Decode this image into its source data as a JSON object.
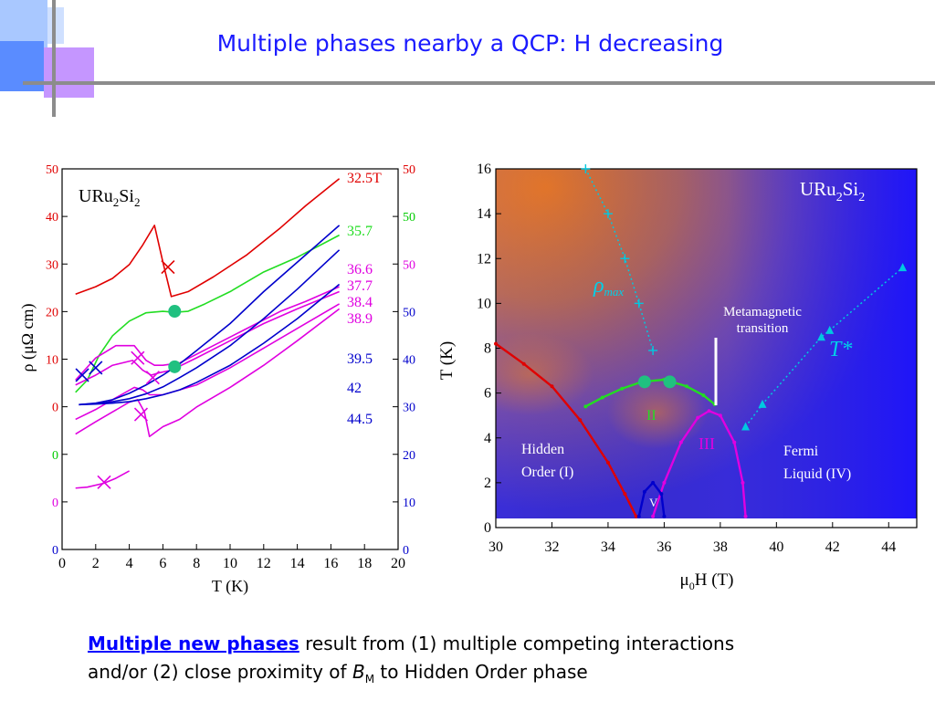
{
  "slide": {
    "title": "Multiple phases nearby a QCP: H decreasing",
    "footer": {
      "highlight": "Multiple new phases",
      "line1_rest": " result from (1) multiple competing interactions",
      "line2_pre": "and/or (2) close proximity of ",
      "b_symbol": "B",
      "b_sub": "M",
      "line2_post": " to Hidden Order phase"
    }
  },
  "chart_data": [
    {
      "type": "line",
      "compound": "URu",
      "compound_sub1": "2",
      "compound_mid": "Si",
      "compound_sub2": "2",
      "xlabel": "T (K)",
      "ylabel": "ρ (μΩ cm)",
      "xlim": [
        0,
        20
      ],
      "xticks": [
        0,
        2,
        4,
        6,
        8,
        10,
        12,
        14,
        16,
        18,
        20
      ],
      "left_ticks": [
        {
          "label": "50",
          "color": "#e00000"
        },
        {
          "label": "40",
          "color": "#e00000"
        },
        {
          "label": "30",
          "color": "#e00000"
        },
        {
          "label": "20",
          "color": "#e00000"
        },
        {
          "label": "10",
          "color": "#e00000"
        },
        {
          "label": "0",
          "color": "#e00000"
        },
        {
          "label": "0",
          "color": "#00cc00"
        },
        {
          "label": "0",
          "color": "#e000e0"
        },
        {
          "label": "0",
          "color": "#0000cc"
        }
      ],
      "right_ticks": [
        {
          "label": "50",
          "color": "#e00000"
        },
        {
          "label": "50",
          "color": "#00cc00"
        },
        {
          "label": "50",
          "color": "#e000e0"
        },
        {
          "label": "50",
          "color": "#0000cc"
        },
        {
          "label": "40",
          "color": "#0000cc"
        },
        {
          "label": "30",
          "color": "#0000cc"
        },
        {
          "label": "20",
          "color": "#0000cc"
        },
        {
          "label": "10",
          "color": "#0000cc"
        },
        {
          "label": "0",
          "color": "#0000cc"
        }
      ],
      "series": [
        {
          "name": "32.5T",
          "color": "#e00000",
          "x": [
            0.8,
            2,
            3,
            4,
            4.8,
            5.5,
            6.0,
            6.5,
            7.5,
            9,
            11,
            13,
            14.5,
            16.5
          ],
          "y": [
            24.5,
            26,
            27.7,
            30.5,
            34.5,
            38.5,
            31,
            24,
            25,
            28,
            32.5,
            38,
            42.5,
            48
          ]
        },
        {
          "name": "35.7",
          "color": "#22dd22",
          "x": [
            0.8,
            1.5,
            2.2,
            3,
            4,
            5,
            6,
            6.7,
            7.5,
            8.5,
            10,
            12,
            14,
            16.5
          ],
          "y": [
            4.5,
            7,
            12,
            16,
            19,
            20.7,
            21,
            20.8,
            21,
            22.5,
            25,
            29,
            32,
            36.5
          ]
        },
        {
          "name": "36.6",
          "color": "#e000e0",
          "x": [
            0.8,
            2,
            3.2,
            4.3,
            5,
            5.5,
            6,
            7,
            9,
            11,
            13,
            14.5,
            16.5
          ],
          "y": [
            7,
            11.5,
            14,
            14,
            11,
            10,
            10,
            10.5,
            14,
            17.5,
            21,
            23,
            26
          ]
        },
        {
          "name": "37.7",
          "color": "#e000e0",
          "x": [
            0.8,
            2,
            3,
            4.2,
            4.8,
            5.3,
            5.8,
            6.5,
            8,
            10,
            12,
            14,
            16.5
          ],
          "y": [
            6,
            8,
            10,
            11,
            9,
            8,
            8.5,
            9,
            11.5,
            15,
            18.5,
            21.5,
            25
          ]
        },
        {
          "name": "38.4",
          "color": "#e000e0",
          "x": [
            0.8,
            2,
            3,
            4.3,
            4.8,
            5.2,
            6,
            7,
            8,
            10,
            12,
            14,
            16.5
          ],
          "y": [
            -1,
            1,
            3,
            5.5,
            5,
            4,
            4,
            5,
            6,
            9.5,
            13.5,
            17.5,
            22.5
          ]
        },
        {
          "name": "38.9",
          "color": "#e000e0",
          "x": [
            0.8,
            2,
            3,
            4,
            4.5,
            4.9,
            5.2,
            6,
            7,
            8,
            10,
            12,
            14,
            16.5
          ],
          "y": [
            -4,
            -1.5,
            0.5,
            2.5,
            3,
            0.5,
            -4.5,
            -2.5,
            -1,
            1.5,
            5.5,
            10,
            15,
            21.5
          ]
        },
        {
          "name": "",
          "color": "#e000e0",
          "x": [
            0.8,
            1.5,
            2.5,
            3.2,
            4
          ],
          "y": [
            -15,
            -14.8,
            -14,
            -13,
            -11.5
          ]
        },
        {
          "name": "39.5",
          "color": "#0000cc",
          "x": [
            1,
            2,
            3,
            4,
            5,
            6,
            7,
            8,
            10,
            12,
            14,
            16.5
          ],
          "y": [
            2,
            2.3,
            3,
            4.3,
            6,
            8,
            10.3,
            13,
            18.5,
            25,
            31,
            38.5
          ]
        },
        {
          "name": "42",
          "color": "#0000cc",
          "x": [
            1,
            2,
            3,
            4,
            5,
            6,
            7,
            8,
            10,
            12,
            14,
            16.5
          ],
          "y": [
            2,
            2.2,
            2.6,
            3.2,
            4.2,
            5.6,
            7.5,
            9.5,
            14,
            19.5,
            25.5,
            33.5
          ]
        },
        {
          "name": "44.5",
          "color": "#0000cc",
          "x": [
            1,
            2,
            3,
            4,
            5,
            6,
            7,
            8,
            10,
            12,
            14,
            16.5
          ],
          "y": [
            2,
            2.1,
            2.3,
            2.6,
            3.2,
            4,
            5,
            6.5,
            10,
            14.5,
            19.5,
            26.5
          ]
        }
      ],
      "markers": [
        {
          "type": "x",
          "x": 6.3,
          "y": 30,
          "color": "#e00000"
        },
        {
          "type": "dot",
          "x": 6.7,
          "y": 21,
          "color": "#20c080"
        },
        {
          "type": "dot",
          "x": 6.7,
          "y": 9.7,
          "color": "#20c080"
        },
        {
          "type": "x",
          "x": 4.5,
          "y": 11.5,
          "color": "#e000e0"
        },
        {
          "type": "x",
          "x": 5.4,
          "y": 7.5,
          "color": "#e000e0"
        },
        {
          "type": "x",
          "x": 4.7,
          "y": 0,
          "color": "#e000e0"
        },
        {
          "type": "x",
          "x": 2.5,
          "y": -13.8,
          "color": "#e000e0"
        },
        {
          "type": "x",
          "x": 1.2,
          "y": 8,
          "color": "#0000cc"
        },
        {
          "type": "x",
          "x": 2.0,
          "y": 9.5,
          "color": "#0000cc"
        }
      ]
    },
    {
      "type": "scatter",
      "compound": "URu",
      "compound_sub1": "2",
      "compound_mid": "Si",
      "compound_sub2": "2",
      "xlabel_mu": "μ",
      "xlabel_sub": "0",
      "xlabel_rest": "H (T)",
      "ylabel": "T (K)",
      "xlim": [
        30,
        45
      ],
      "ylim": [
        0,
        16
      ],
      "xticks": [
        30,
        32,
        34,
        36,
        38,
        40,
        42,
        44
      ],
      "yticks": [
        0,
        2,
        4,
        6,
        8,
        10,
        12,
        14,
        16
      ],
      "labels": {
        "rho_symbol": "ρ",
        "rho_sub": "max",
        "metamagnetic_line1": "Metamagnetic",
        "metamagnetic_line2": "transition",
        "tstar": "T*",
        "phase_ii": "II",
        "phase_iii": "III",
        "phase_v": "V",
        "hidden_order_line1": "Hidden",
        "hidden_order_line2": "Order (I)",
        "fermi_line1": "Fermi",
        "fermi_line2": "Liquid (IV)"
      },
      "series": [
        {
          "name": "",
          "color": "#e00000",
          "x": [
            30,
            31,
            32,
            33,
            34,
            34.6,
            35.0
          ],
          "y": [
            8.2,
            7.3,
            6.3,
            4.8,
            2.9,
            1.5,
            0.5
          ]
        },
        {
          "name": "",
          "color": "#22dd22",
          "x": [
            33.2,
            33.8,
            34.5,
            35.2,
            36,
            36.8,
            37.4,
            37.8
          ],
          "y": [
            5.4,
            5.8,
            6.2,
            6.5,
            6.6,
            6.3,
            5.9,
            5.5
          ]
        },
        {
          "name": "",
          "color": "#e000e0",
          "x": [
            35.6,
            36.0,
            36.6,
            37.2,
            37.6,
            38.0,
            38.5,
            38.8,
            38.9
          ],
          "y": [
            0.5,
            2.0,
            3.8,
            4.9,
            5.2,
            5.0,
            3.8,
            2.0,
            0.5
          ]
        },
        {
          "name": "",
          "color": "#0000cc",
          "x": [
            35.1,
            35.3,
            35.6,
            35.9,
            36.0
          ],
          "y": [
            0.5,
            1.6,
            2.0,
            1.5,
            0.5
          ]
        },
        {
          "name": "",
          "color": "#00c8e0",
          "x": [
            33.2,
            34,
            34.6,
            35.1,
            35.6
          ],
          "y": [
            16,
            14,
            12,
            10,
            7.9
          ]
        },
        {
          "name": "",
          "color": "#00c8e0",
          "x": [
            38.9,
            39.5,
            41.6,
            41.9,
            44.5
          ],
          "y": [
            4.5,
            5.5,
            8.5,
            8.8,
            11.6
          ]
        }
      ],
      "markers": [
        {
          "type": "dot",
          "x": 35.3,
          "y": 6.5,
          "color": "#20c080"
        },
        {
          "type": "dot",
          "x": 36.2,
          "y": 6.5,
          "color": "#20c080"
        }
      ]
    }
  ]
}
